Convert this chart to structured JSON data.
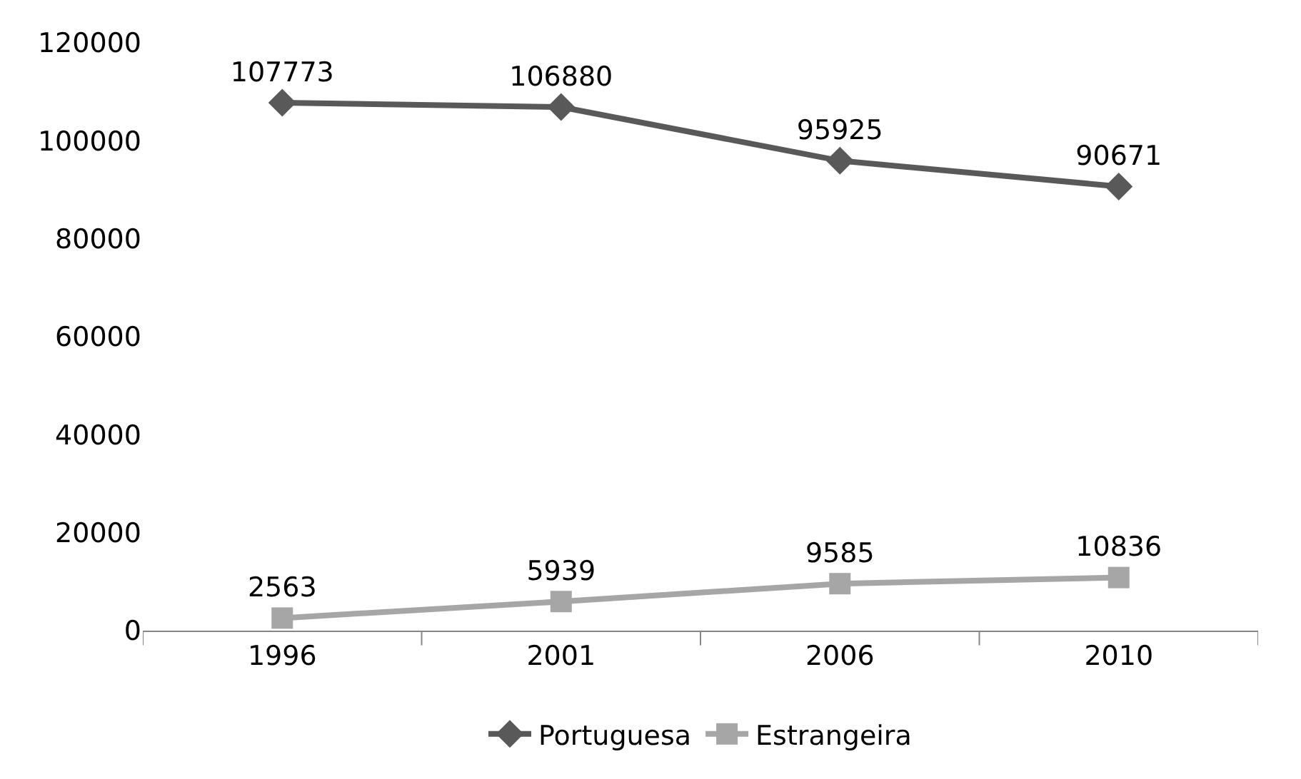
{
  "chart_data": {
    "type": "line",
    "categories": [
      "1996",
      "2001",
      "2006",
      "2010"
    ],
    "series": [
      {
        "name": "Portuguesa",
        "color": "#595959",
        "marker": "diamond",
        "values": [
          107773,
          106880,
          95925,
          90671
        ]
      },
      {
        "name": "Estrangeira",
        "color": "#a6a6a6",
        "marker": "square",
        "values": [
          2563,
          5939,
          9585,
          10836
        ]
      }
    ],
    "ylim": [
      0,
      120000
    ],
    "yticks": [
      0,
      20000,
      40000,
      60000,
      80000,
      100000,
      120000
    ],
    "data_labels": true,
    "legend": "bottom",
    "grid": false,
    "line_style": "solid"
  }
}
